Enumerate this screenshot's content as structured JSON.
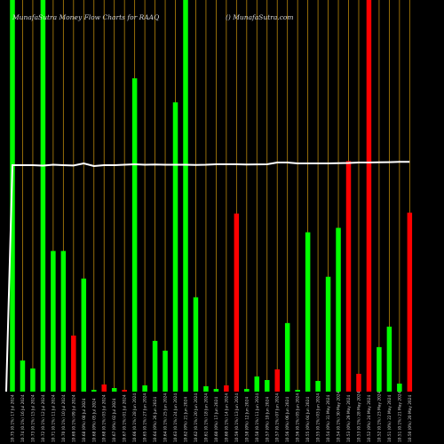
{
  "header": {
    "title": "MunafaSutra  Money Flow  Charts for RAAQ",
    "source": "() MunafaSutra.com"
  },
  "colors": {
    "background": "#000000",
    "up_bar": "#00ff00",
    "down_bar": "#ff0000",
    "grid_line": "#b8860b",
    "price_line": "#ffffff"
  },
  "chart_data": {
    "type": "bar",
    "title": "MunafaSutra  Money Flow  Charts for RAAQ",
    "grid": "vertical",
    "categories": [
      "Wed 17 Jul 2024",
      "Tue 16 Jul 2024",
      "Mon 15 Jul 2024",
      "Fri 12 Jul 2024",
      "Thu 11 Jul 2024",
      "Wed 10 Jul 2024",
      "Tue 09 Jul 2024",
      "Mon 08 Jul 2024",
      "Fri 05 Jul 2024",
      "Wed 03 Jul 2024",
      "Tue 02 Jul 2024",
      "Mon 01 Jul 2024",
      "Fri 28 Jun 2024",
      "Thu 27 Jun 2024",
      "Wed 26 Jun 2024",
      "Tue 25 Jun 2024",
      "Mon 24 Jun 2024",
      "Fri 21 Jun 2024",
      "Thu 20 Jun 2024",
      "Tue 18 Jun 2024",
      "Mon 17 Jun 2024",
      "Fri 14 Jun 2024",
      "Thu 13 Jun 2024",
      "Wed 12 Jun 2024",
      "Tue 11 Jun 2024",
      "Mon 10 Jun 2024",
      "Fri 07 Jun 2024",
      "Thu 06 Jun 2024",
      "Wed 05 Jun 2024",
      "Tue 04 Jun 2024",
      "Mon 03 Jun 2024",
      "Fri 31 May 2024",
      "Thu 30 May 2024",
      "Wed 29 May 2024",
      "Tue 28 May 2024",
      "Fri 24 May 2024",
      "Thu 23 May 2024",
      "Wed 22 May 2024",
      "Tue 21 May 2024",
      "Mon 20 May 2024"
    ],
    "tick_labels": [
      "10.75 (0.1%) 17 Jul 2024",
      "10.74 (0.1%) 16 Jul 2024",
      "10.73 (0.1%) 15 Jul 2024",
      "10.72 (0.1%) 12 Jul 2024",
      "10.71 (0.1%) 11 Jul 2024",
      "10.70 (0.1%) 10 Jul 2024",
      "10.69 (0.1%) 09 Jul 2024",
      "10.68 (0%) 08 Jul 2024",
      "10.68 (0%) 05 Jul 2024",
      "10.68 (0.1%) 03 Jul 2024",
      "10.67 (0%) 02 Jul 2024",
      "10.67 (0.1%) 01 Jul 2024",
      "10.66 (0.1%) 28 Jun 2024",
      "10.65 (0.1%) 27 Jun 2024",
      "10.64 (0%) 26 Jun 2024",
      "10.64 (0.1%) 25 Jun 2024",
      "10.63 (0.1%) 24 Jun 2024",
      "10.62 (0%) 21 Jun 2024",
      "10.62 (0.1%) 20 Jun 2024",
      "10.61 (0.1%) 18 Jun 2024",
      "10.60 (0%) 17 Jun 2024",
      "10.60 (0.1%) 14 Jun 2024",
      "10.59 (0.1%) 13 Jun 2024",
      "10.58 (0%) 12 Jun 2024",
      "10.58 (0.1%) 11 Jun 2024",
      "10.57 (0%) 10 Jun 2024",
      "10.57 (0.1%) 07 Jun 2024",
      "10.56 (0%) 06 Jun 2024",
      "10.56 (0.1%) 05 Jun 2024",
      "10.55 (0%) 04 Jun 2024",
      "10.55 (0.1%) 03 Jun 2024",
      "10.54 (0%) 31 May 2024",
      "10.54 (0.1%) 30 May 2024",
      "10.53 (0%) 29 May 2024",
      "10.53 (0.1%) 28 May 2024",
      "10.52 (0%) 24 May 2024",
      "10.52 (0.1%) 23 May 2024",
      "10.51 (0%) 22 May 2024",
      "10.51 (0.1%) 21 May 2024",
      "10.50 (0%) 20 May 2024"
    ],
    "bar_colors": [
      "green",
      "green",
      "green",
      "green",
      "green",
      "green",
      "red",
      "green",
      "green",
      "red",
      "green",
      "red",
      "green",
      "green",
      "green",
      "green",
      "green",
      "green",
      "green",
      "green",
      "green",
      "red",
      "red",
      "green",
      "green",
      "green",
      "red",
      "green",
      "green",
      "green",
      "green",
      "green",
      "green",
      "red",
      "red",
      "red",
      "green",
      "green",
      "green",
      "red"
    ],
    "values": [
      440,
      35,
      26,
      440,
      158,
      158,
      63,
      127,
      2,
      8,
      4,
      2,
      352,
      7,
      57,
      46,
      325,
      440,
      106,
      6,
      3,
      7,
      200,
      3,
      17,
      13,
      25,
      77,
      2,
      179,
      12,
      129,
      184,
      259,
      20,
      440,
      50,
      73,
      9,
      201
    ],
    "ylim": [
      0,
      440
    ],
    "price_line": [
      186,
      186,
      186,
      186.5,
      185.5,
      186,
      186.4,
      184,
      187,
      186,
      186,
      185.5,
      185,
      185.5,
      185.2,
      185.5,
      185.5,
      185.5,
      185.7,
      185.5,
      185,
      185,
      185,
      185.3,
      185.1,
      185,
      183,
      183,
      184,
      184,
      184,
      184,
      183.7,
      183.5,
      183,
      183,
      182.7,
      182.6,
      182.3,
      182.3
    ]
  }
}
